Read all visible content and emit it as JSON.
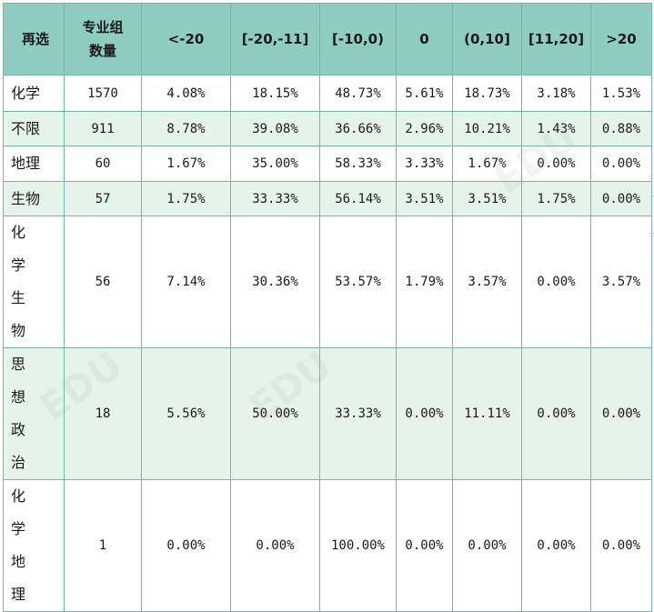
{
  "headers": [
    "再选",
    "专业组数量",
    "<-20",
    "[-20,-11]",
    "[-10,0)",
    "0",
    "(0,10]",
    "[11,20]",
    ">20"
  ],
  "rows": [
    {
      "cat": "化学",
      "count": "1570",
      "v": [
        "4.08%",
        "18.15%",
        "48.73%",
        "5.61%",
        "18.73%",
        "3.18%",
        "1.53%"
      ]
    },
    {
      "cat": "不限",
      "count": "911",
      "v": [
        "8.78%",
        "39.08%",
        "36.66%",
        "2.96%",
        "10.21%",
        "1.43%",
        "0.88%"
      ]
    },
    {
      "cat": "地理",
      "count": "60",
      "v": [
        "1.67%",
        "35.00%",
        "58.33%",
        "3.33%",
        "1.67%",
        "0.00%",
        "0.00%"
      ]
    },
    {
      "cat": "生物",
      "count": "57",
      "v": [
        "1.75%",
        "33.33%",
        "56.14%",
        "3.51%",
        "3.51%",
        "1.75%",
        "0.00%"
      ]
    },
    {
      "cat": "化学生物",
      "count": "56",
      "v": [
        "7.14%",
        "30.36%",
        "53.57%",
        "1.79%",
        "3.57%",
        "0.00%",
        "3.57%"
      ]
    },
    {
      "cat": "思想政治",
      "count": "18",
      "v": [
        "5.56%",
        "50.00%",
        "33.33%",
        "0.00%",
        "11.11%",
        "0.00%",
        "0.00%"
      ]
    },
    {
      "cat": "化学地理",
      "count": "1",
      "v": [
        "0.00%",
        "0.00%",
        "100.00%",
        "0.00%",
        "0.00%",
        "0.00%",
        "0.00%"
      ]
    }
  ]
}
